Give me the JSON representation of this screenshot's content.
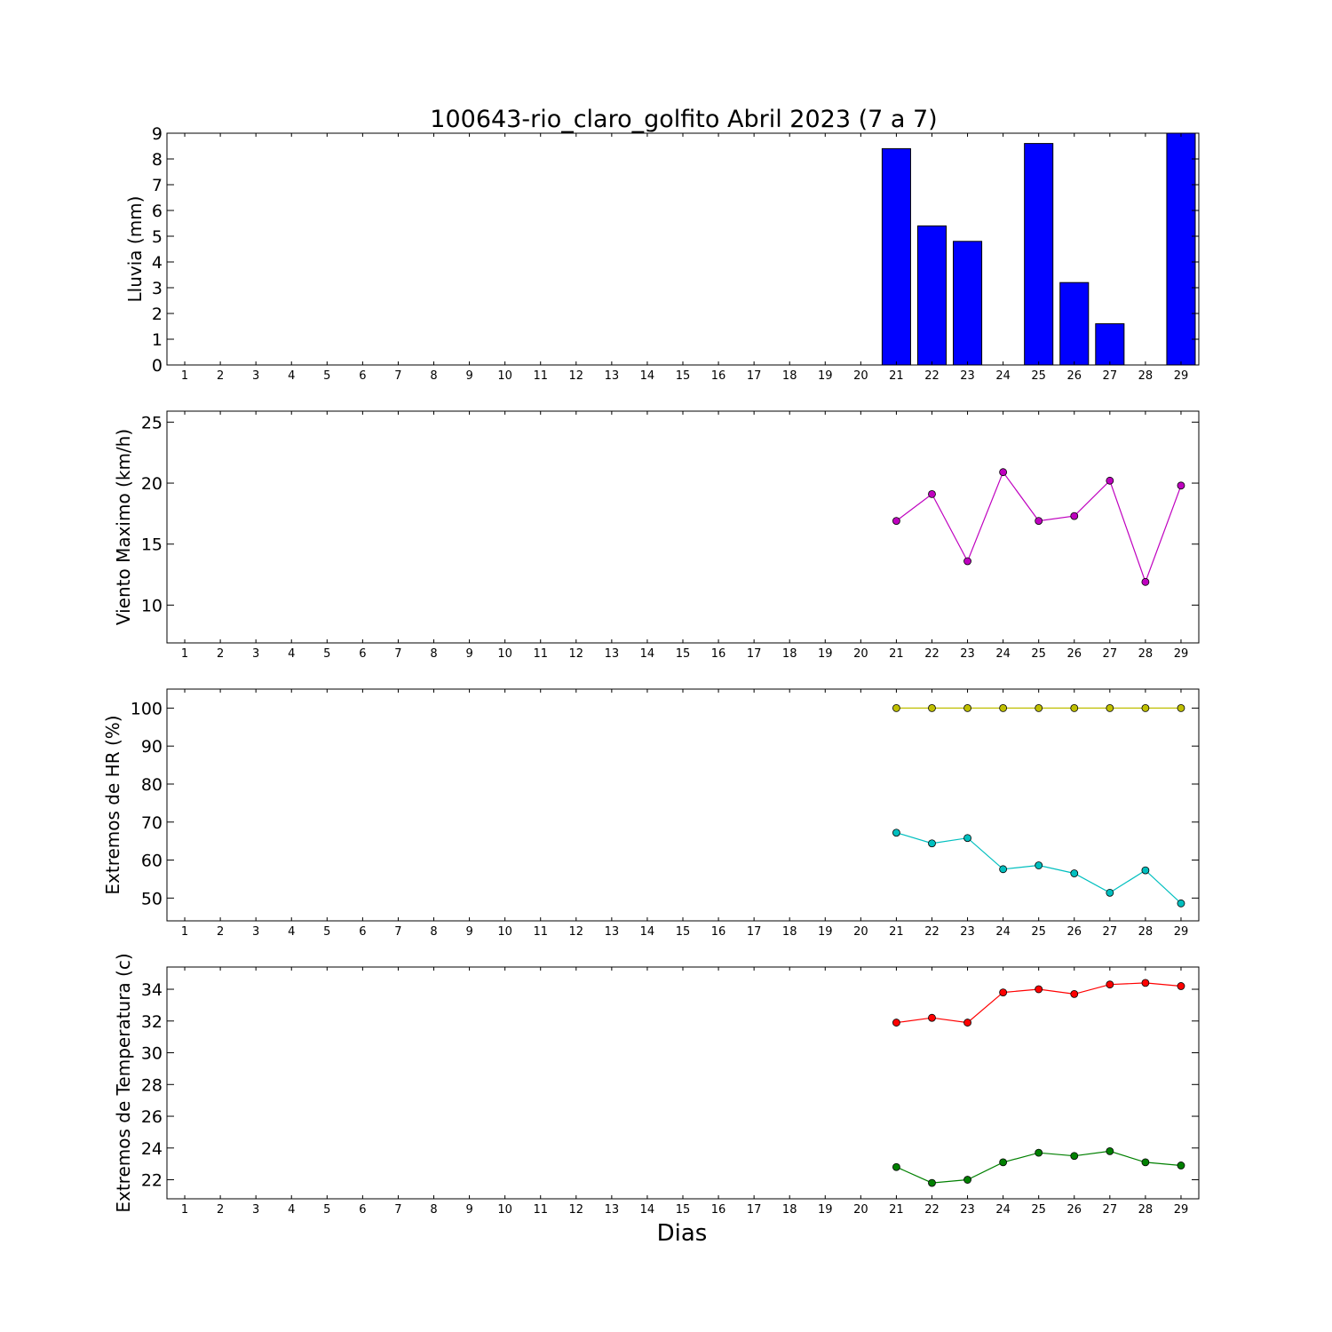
{
  "figure": {
    "title": "100643-rio_claro_golfito Abril 2023  (7 a 7)",
    "xlabel": "Dias"
  },
  "chart_data": [
    {
      "type": "bar",
      "ylabel": "Lluvia (mm)",
      "ylim": [
        0,
        9
      ],
      "yticks": [
        0,
        1,
        2,
        3,
        4,
        5,
        6,
        7,
        8,
        9
      ],
      "x": [
        1,
        2,
        3,
        4,
        5,
        6,
        7,
        8,
        9,
        10,
        11,
        12,
        13,
        14,
        15,
        16,
        17,
        18,
        19,
        20,
        21,
        22,
        23,
        24,
        25,
        26,
        27,
        28,
        29
      ],
      "xlim": [
        0.5,
        29.5
      ],
      "series": [
        {
          "color": "#0000ff",
          "values": [
            0,
            0,
            0,
            0,
            0,
            0,
            0,
            0,
            0,
            0,
            0,
            0,
            0,
            0,
            0,
            0,
            0,
            0,
            0,
            0,
            8.4,
            5.4,
            4.8,
            0,
            8.6,
            3.2,
            1.6,
            0,
            9.0
          ]
        }
      ]
    },
    {
      "type": "line",
      "ylabel": "Viento Maximo (km/h)",
      "ylim": [
        6.9,
        25.9
      ],
      "yticks": [
        10,
        15,
        20,
        25
      ],
      "x": [
        1,
        2,
        3,
        4,
        5,
        6,
        7,
        8,
        9,
        10,
        11,
        12,
        13,
        14,
        15,
        16,
        17,
        18,
        19,
        20,
        21,
        22,
        23,
        24,
        25,
        26,
        27,
        28,
        29
      ],
      "xlim": [
        0.5,
        29.5
      ],
      "series": [
        {
          "color": "#bf00bf",
          "points": [
            [
              21,
              16.9
            ],
            [
              22,
              19.1
            ],
            [
              23,
              13.6
            ],
            [
              24,
              20.9
            ],
            [
              25,
              16.9
            ],
            [
              26,
              17.3
            ],
            [
              27,
              20.2
            ],
            [
              28,
              11.9
            ],
            [
              29,
              19.8
            ]
          ]
        }
      ]
    },
    {
      "type": "line",
      "ylabel": "Extremos de HR (%)",
      "ylim": [
        44,
        105
      ],
      "yticks": [
        50,
        60,
        70,
        80,
        90,
        100
      ],
      "x": [
        1,
        2,
        3,
        4,
        5,
        6,
        7,
        8,
        9,
        10,
        11,
        12,
        13,
        14,
        15,
        16,
        17,
        18,
        19,
        20,
        21,
        22,
        23,
        24,
        25,
        26,
        27,
        28,
        29
      ],
      "xlim": [
        0.5,
        29.5
      ],
      "series": [
        {
          "color": "#bfbf00",
          "points": [
            [
              21,
              100
            ],
            [
              22,
              100
            ],
            [
              23,
              100
            ],
            [
              24,
              100
            ],
            [
              25,
              100
            ],
            [
              26,
              100
            ],
            [
              27,
              100
            ],
            [
              28,
              100
            ],
            [
              29,
              100
            ]
          ]
        },
        {
          "color": "#00bfbf",
          "points": [
            [
              21,
              67.2
            ],
            [
              22,
              64.4
            ],
            [
              23,
              65.8
            ],
            [
              24,
              57.6
            ],
            [
              25,
              58.6
            ],
            [
              26,
              56.5
            ],
            [
              27,
              51.4
            ],
            [
              28,
              57.3
            ],
            [
              29,
              48.6
            ]
          ]
        }
      ]
    },
    {
      "type": "line",
      "ylabel": "Extremos de Temperatura (c)",
      "ylim": [
        20.8,
        35.4
      ],
      "yticks": [
        22,
        24,
        26,
        28,
        30,
        32,
        34
      ],
      "x": [
        1,
        2,
        3,
        4,
        5,
        6,
        7,
        8,
        9,
        10,
        11,
        12,
        13,
        14,
        15,
        16,
        17,
        18,
        19,
        20,
        21,
        22,
        23,
        24,
        25,
        26,
        27,
        28,
        29
      ],
      "xlim": [
        0.5,
        29.5
      ],
      "series": [
        {
          "color": "#ff0000",
          "points": [
            [
              21,
              31.9
            ],
            [
              22,
              32.2
            ],
            [
              23,
              31.9
            ],
            [
              24,
              33.8
            ],
            [
              25,
              34.0
            ],
            [
              26,
              33.7
            ],
            [
              27,
              34.3
            ],
            [
              28,
              34.4
            ],
            [
              29,
              34.2
            ]
          ]
        },
        {
          "color": "#008000",
          "points": [
            [
              21,
              22.8
            ],
            [
              22,
              21.8
            ],
            [
              23,
              22.0
            ],
            [
              24,
              23.1
            ],
            [
              25,
              23.7
            ],
            [
              26,
              23.5
            ],
            [
              27,
              23.8
            ],
            [
              28,
              23.1
            ],
            [
              29,
              22.9
            ]
          ]
        }
      ]
    }
  ]
}
